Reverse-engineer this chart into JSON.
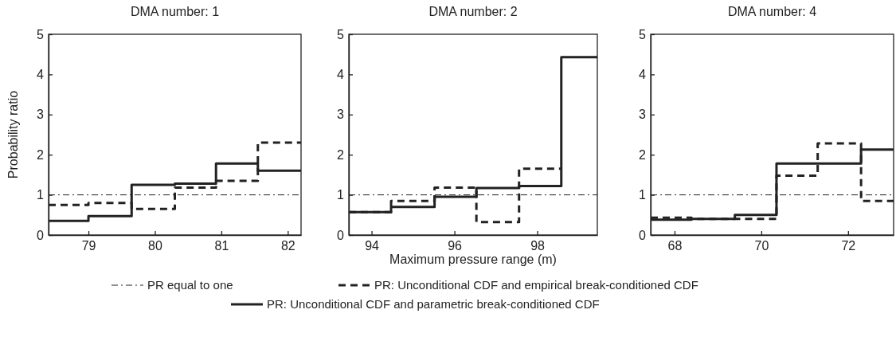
{
  "chart_data": [
    {
      "type": "step",
      "title": "DMA number: 1",
      "ylabel": "Probability ratio",
      "xlim": [
        78.4,
        82.2
      ],
      "xticks": [
        79,
        80,
        81,
        82
      ],
      "ylim": [
        0,
        5
      ],
      "yticks": [
        0,
        1,
        2,
        3,
        4,
        5
      ],
      "series": [
        {
          "color": "#222222",
          "line_style": "dashed",
          "x": [
            78.4,
            79.0,
            79.65,
            80.3,
            80.92,
            81.55,
            82.2
          ],
          "values": [
            0.75,
            0.8,
            0.65,
            1.18,
            1.35,
            2.3,
            2.3
          ]
        },
        {
          "color": "#222222",
          "line_style": "solid",
          "x": [
            78.4,
            79.0,
            79.65,
            80.3,
            80.92,
            81.55,
            82.2
          ],
          "values": [
            0.35,
            0.47,
            1.25,
            1.28,
            1.78,
            1.6,
            1.6
          ]
        }
      ],
      "ref_lines": [
        {
          "axis": "y",
          "value": 1,
          "line_style": "dashdot",
          "color": "#222222"
        }
      ]
    },
    {
      "type": "step",
      "title": "DMA number: 2",
      "xlabel": "Maximum pressure range (m)",
      "xlim": [
        93.45,
        99.45
      ],
      "xticks": [
        94,
        96,
        98
      ],
      "ylim": [
        0,
        5
      ],
      "yticks": [
        0,
        1,
        2,
        3,
        4,
        5
      ],
      "legend": "bottom",
      "series": [
        {
          "name": "PR: Unconditional CDF and empirical break-conditioned CDF",
          "color": "#222222",
          "line_style": "dashed",
          "x": [
            93.45,
            94.47,
            95.52,
            96.53,
            97.56,
            98.58
          ],
          "values": [
            0.57,
            0.85,
            1.18,
            0.32,
            1.65,
            1.65
          ]
        },
        {
          "name": "PR: Unconditional CDF and parametric break-conditioned CDF",
          "color": "#222222",
          "line_style": "solid",
          "x": [
            93.45,
            94.47,
            95.52,
            96.53,
            97.56,
            98.58,
            99.45
          ],
          "values": [
            0.57,
            0.7,
            0.95,
            1.17,
            1.22,
            4.43,
            4.43
          ]
        }
      ],
      "ref_lines": [
        {
          "axis": "y",
          "value": 1,
          "label": "PR equal to one",
          "line_style": "dashdot",
          "color": "#222222"
        }
      ]
    },
    {
      "type": "step",
      "title": "DMA number: 4",
      "xlim": [
        67.45,
        73.05
      ],
      "xticks": [
        68,
        70,
        72
      ],
      "ylim": [
        0,
        5
      ],
      "yticks": [
        0,
        1,
        2,
        3,
        4,
        5
      ],
      "series": [
        {
          "color": "#222222",
          "line_style": "dashed",
          "x": [
            67.45,
            68.39,
            69.39,
            70.35,
            71.3,
            72.3,
            73.05
          ],
          "values": [
            0.43,
            0.4,
            0.4,
            1.48,
            2.28,
            0.85,
            0.85
          ]
        },
        {
          "color": "#222222",
          "line_style": "solid",
          "x": [
            67.45,
            68.39,
            69.39,
            70.35,
            71.3,
            72.3,
            73.05
          ],
          "values": [
            0.38,
            0.4,
            0.5,
            1.78,
            1.78,
            2.13,
            2.13
          ]
        }
      ],
      "ref_lines": [
        {
          "axis": "y",
          "value": 1,
          "line_style": "dashdot",
          "color": "#222222"
        }
      ]
    }
  ]
}
